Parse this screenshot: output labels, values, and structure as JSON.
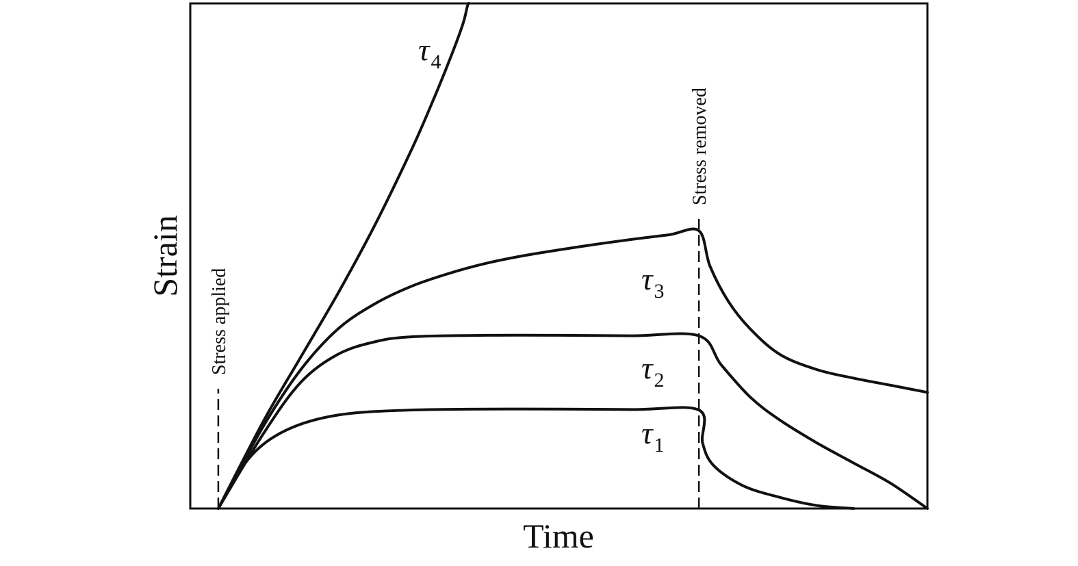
{
  "chart_data": {
    "type": "line",
    "title": "",
    "xlabel": "Time",
    "ylabel": "Strain",
    "xlim": [
      0,
      10
    ],
    "ylim": [
      0,
      10
    ],
    "grid": false,
    "legend": "none",
    "annotations": [
      {
        "text": "Stress applied",
        "x": 0.38
      },
      {
        "text": "Stress removed",
        "x": 6.9
      }
    ],
    "series": [
      {
        "symbol": "τ",
        "subscript": "1",
        "x": [
          0.38,
          0.8,
          1.3,
          2.0,
          3.0,
          4.5,
          6.0,
          6.9,
          6.95,
          7.1,
          7.5,
          8.0,
          8.5,
          9.0
        ],
        "y": [
          0.0,
          1.0,
          1.55,
          1.85,
          1.95,
          1.97,
          1.96,
          1.95,
          1.3,
          0.85,
          0.45,
          0.22,
          0.06,
          0.0
        ]
      },
      {
        "symbol": "τ",
        "subscript": "2",
        "x": [
          0.38,
          1.0,
          1.5,
          2.0,
          2.5,
          3.0,
          4.0,
          5.0,
          6.0,
          6.9,
          7.2,
          7.6,
          8.0,
          8.5,
          9.0,
          9.5,
          10.0
        ],
        "y": [
          0.0,
          1.5,
          2.5,
          3.05,
          3.3,
          3.4,
          3.43,
          3.43,
          3.42,
          3.42,
          2.85,
          2.2,
          1.75,
          1.3,
          0.9,
          0.5,
          0.0
        ]
      },
      {
        "symbol": "τ",
        "subscript": "3",
        "x": [
          0.38,
          1.0,
          1.5,
          2.0,
          2.5,
          3.0,
          3.5,
          4.0,
          4.5,
          5.0,
          5.5,
          6.0,
          6.5,
          6.9,
          7.05,
          7.3,
          7.6,
          8.0,
          8.5,
          9.0,
          9.5,
          10.0
        ],
        "y": [
          0.0,
          1.65,
          2.75,
          3.55,
          4.05,
          4.4,
          4.65,
          4.85,
          5.0,
          5.12,
          5.23,
          5.33,
          5.42,
          5.5,
          4.8,
          4.1,
          3.55,
          3.05,
          2.75,
          2.58,
          2.44,
          2.3
        ]
      },
      {
        "symbol": "τ",
        "subscript": "4",
        "x": [
          0.38,
          1.0,
          1.5,
          2.0,
          2.5,
          3.0,
          3.3,
          3.55,
          3.7,
          3.76,
          3.78
        ],
        "y": [
          0.0,
          1.75,
          3.0,
          4.25,
          5.6,
          7.1,
          8.1,
          9.0,
          9.6,
          9.95,
          10.0
        ]
      }
    ]
  }
}
